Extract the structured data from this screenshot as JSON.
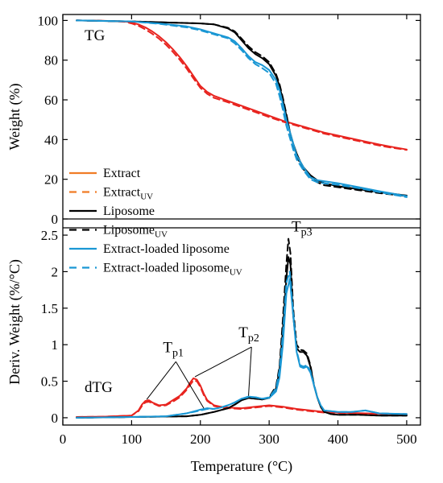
{
  "chart_data": {
    "type": "line",
    "xlabel": "Temperature (°C)",
    "xlim": [
      0,
      520
    ],
    "xticks": [
      0,
      100,
      200,
      300,
      400,
      500
    ],
    "colors": {
      "extract": "#e8241f",
      "extract_legend": "#f07c25",
      "liposome": "#000000",
      "loaded": "#1a97d4"
    },
    "panels": [
      {
        "id": "tg",
        "label": "TG",
        "ylabel": "Weight (%)",
        "ylim": [
          0,
          103
        ],
        "yticks": [
          0,
          20,
          40,
          60,
          80,
          100
        ],
        "series": [
          {
            "key": "extract",
            "dashed": false,
            "x": [
              20,
              60,
              90,
              100,
              110,
              120,
              130,
              140,
              150,
              160,
              170,
              180,
              190,
              200,
              210,
              220,
              240,
              260,
              280,
              300,
              320,
              340,
              360,
              380,
              400,
              420,
              440,
              460,
              480,
              500
            ],
            "y": [
              100,
              99.8,
              99.5,
              99,
              98,
              96.5,
              94.5,
              92,
              89,
              85.5,
              81.5,
              77,
              72,
              67,
              64,
              62,
              59.5,
              57,
              54.5,
              52,
              49.5,
              47.5,
              45.5,
              43.5,
              42,
              40.5,
              39,
              37.5,
              36.2,
              35
            ]
          },
          {
            "key": "extract",
            "dashed": true,
            "x": [
              20,
              60,
              90,
              100,
              110,
              120,
              130,
              140,
              150,
              160,
              170,
              180,
              190,
              200,
              210,
              220,
              240,
              260,
              280,
              300,
              320,
              340,
              360,
              380,
              400,
              420,
              440,
              460,
              480,
              500
            ],
            "y": [
              100,
              99.8,
              99.3,
              98.5,
              97.3,
              95.5,
              93.3,
              90.8,
              87.8,
              84.2,
              80.2,
              75.8,
              70.8,
              66,
              63,
              61,
              58.8,
              56.3,
              53.8,
              51.3,
              49,
              47,
              45,
              43,
              41.5,
              40,
              38.5,
              37,
              35.8,
              34.8
            ]
          },
          {
            "key": "liposome",
            "dashed": false,
            "x": [
              20,
              100,
              150,
              200,
              220,
              240,
              250,
              260,
              270,
              280,
              290,
              300,
              310,
              315,
              320,
              325,
              330,
              335,
              340,
              345,
              350,
              360,
              370,
              380,
              400,
              430,
              460,
              500
            ],
            "y": [
              100,
              99.5,
              99,
              98.5,
              98,
              96,
              94,
              90,
              86,
              83,
              81,
              78,
              72,
              67,
              60,
              52,
              44,
              38,
              33,
              29,
              26,
              22,
              19.5,
              18,
              16.5,
              15,
              13.5,
              11.8
            ]
          },
          {
            "key": "liposome",
            "dashed": true,
            "x": [
              20,
              100,
              150,
              200,
              220,
              240,
              250,
              260,
              270,
              280,
              290,
              300,
              310,
              315,
              320,
              325,
              330,
              335,
              340,
              345,
              350,
              360,
              370,
              380,
              400,
              430,
              460,
              500
            ],
            "y": [
              100,
              99.5,
              99,
              98.5,
              98,
              96.3,
              94.5,
              90.8,
              87,
              84,
              82,
              79,
              73,
              68,
              61,
              53,
              44,
              37.5,
              32,
              28,
              25,
              21,
              18.5,
              17,
              16,
              14.5,
              13,
              11.5
            ]
          },
          {
            "key": "loaded",
            "dashed": false,
            "x": [
              20,
              100,
              140,
              180,
              200,
              220,
              240,
              250,
              260,
              270,
              280,
              290,
              300,
              310,
              315,
              320,
              325,
              330,
              335,
              340,
              350,
              360,
              370,
              380,
              400,
              430,
              460,
              500
            ],
            "y": [
              100,
              99.5,
              98.5,
              97,
              95.5,
              93.5,
              91.5,
              89.5,
              86,
              82,
              79,
              77.5,
              75,
              70,
              65,
              58,
              50,
              44,
              38,
              32,
              26,
              21,
              19.5,
              19,
              18,
              16,
              14,
              11.5
            ]
          },
          {
            "key": "loaded",
            "dashed": true,
            "x": [
              20,
              100,
              140,
              180,
              200,
              220,
              240,
              250,
              260,
              270,
              280,
              290,
              300,
              310,
              315,
              320,
              325,
              330,
              335,
              340,
              350,
              360,
              370,
              380,
              400,
              430,
              460,
              500
            ],
            "y": [
              100,
              99.5,
              98.3,
              96.5,
              95,
              93,
              91,
              88.5,
              85,
              81,
              78,
              76,
              73.5,
              68,
              62,
              55,
              47,
              41,
              35,
              30,
              24.5,
              20,
              18.5,
              18,
              17.2,
              15.5,
              13.5,
              11
            ]
          }
        ]
      },
      {
        "id": "dtg",
        "label": "dTG",
        "ylabel": "Deriv. Weight (%/°C)",
        "ylim": [
          -0.1,
          2.6
        ],
        "yticks": [
          0,
          0.5,
          1,
          1.5,
          2,
          2.5
        ],
        "yticklabels": [
          "0",
          "0.5",
          "1",
          "1.5",
          "2",
          "2.5"
        ],
        "series": [
          {
            "key": "extract",
            "dashed": false,
            "x": [
              20,
              60,
              100,
              110,
              115,
              120,
              125,
              130,
              140,
              150,
              160,
              170,
              180,
              185,
              190,
              195,
              200,
              205,
              210,
              220,
              230,
              240,
              260,
              280,
              300,
              320,
              340,
              360,
              380,
              400,
              420,
              440,
              460,
              480,
              500
            ],
            "y": [
              0.01,
              0.015,
              0.03,
              0.1,
              0.18,
              0.23,
              0.24,
              0.21,
              0.17,
              0.18,
              0.24,
              0.3,
              0.4,
              0.48,
              0.54,
              0.52,
              0.44,
              0.33,
              0.24,
              0.17,
              0.15,
              0.14,
              0.13,
              0.15,
              0.17,
              0.15,
              0.12,
              0.1,
              0.08,
              0.07,
              0.065,
              0.06,
              0.055,
              0.05,
              0.05
            ]
          },
          {
            "key": "extract",
            "dashed": true,
            "x": [
              20,
              60,
              100,
              110,
              115,
              120,
              125,
              130,
              140,
              150,
              160,
              170,
              180,
              185,
              190,
              195,
              200,
              205,
              210,
              220,
              230,
              240,
              260,
              280,
              300,
              320,
              340,
              360,
              380,
              400,
              420,
              440,
              460,
              480,
              500
            ],
            "y": [
              0.01,
              0.015,
              0.03,
              0.09,
              0.16,
              0.21,
              0.22,
              0.2,
              0.16,
              0.17,
              0.22,
              0.28,
              0.38,
              0.45,
              0.51,
              0.5,
              0.42,
              0.31,
              0.23,
              0.16,
              0.14,
              0.13,
              0.12,
              0.14,
              0.16,
              0.14,
              0.11,
              0.09,
              0.07,
              0.065,
              0.06,
              0.055,
              0.05,
              0.045,
              0.045
            ]
          },
          {
            "key": "liposome",
            "dashed": false,
            "x": [
              20,
              100,
              180,
              200,
              220,
              240,
              250,
              260,
              270,
              280,
              290,
              300,
              310,
              315,
              320,
              325,
              328,
              331,
              335,
              340,
              345,
              350,
              355,
              360,
              365,
              370,
              375,
              380,
              390,
              400,
              430,
              460,
              500
            ],
            "y": [
              0,
              0.01,
              0.02,
              0.04,
              0.08,
              0.13,
              0.18,
              0.24,
              0.27,
              0.26,
              0.25,
              0.27,
              0.4,
              0.65,
              1.2,
              1.9,
              2.2,
              2.1,
              1.4,
              0.95,
              0.9,
              0.9,
              0.85,
              0.7,
              0.45,
              0.28,
              0.15,
              0.08,
              0.05,
              0.04,
              0.04,
              0.03,
              0.03
            ]
          },
          {
            "key": "liposome",
            "dashed": true,
            "x": [
              20,
              100,
              180,
              200,
              220,
              240,
              250,
              260,
              270,
              280,
              290,
              300,
              310,
              315,
              320,
              325,
              328,
              331,
              335,
              340,
              345,
              350,
              355,
              360,
              365,
              370,
              375,
              380,
              390,
              400,
              430,
              460,
              500
            ],
            "y": [
              0,
              0.01,
              0.02,
              0.04,
              0.08,
              0.13,
              0.18,
              0.24,
              0.27,
              0.26,
              0.25,
              0.28,
              0.43,
              0.7,
              1.35,
              2.1,
              2.45,
              2.25,
              1.5,
              1.0,
              0.93,
              0.92,
              0.88,
              0.72,
              0.46,
              0.28,
              0.15,
              0.08,
              0.05,
              0.04,
              0.04,
              0.03,
              0.03
            ]
          },
          {
            "key": "loaded",
            "dashed": false,
            "x": [
              20,
              100,
              150,
              180,
              200,
              210,
              220,
              230,
              240,
              250,
              260,
              270,
              280,
              290,
              300,
              310,
              315,
              320,
              325,
              330,
              335,
              340,
              345,
              350,
              355,
              360,
              365,
              370,
              375,
              380,
              400,
              420,
              440,
              460,
              500
            ],
            "y": [
              0,
              0.01,
              0.02,
              0.06,
              0.11,
              0.13,
              0.12,
              0.14,
              0.17,
              0.21,
              0.26,
              0.29,
              0.28,
              0.26,
              0.27,
              0.36,
              0.55,
              1.0,
              1.7,
              1.9,
              1.4,
              0.9,
              0.7,
              0.68,
              0.7,
              0.62,
              0.45,
              0.28,
              0.17,
              0.1,
              0.08,
              0.08,
              0.1,
              0.06,
              0.05
            ]
          },
          {
            "key": "loaded",
            "dashed": true,
            "x": [
              20,
              100,
              150,
              180,
              200,
              210,
              220,
              230,
              240,
              250,
              260,
              270,
              280,
              290,
              300,
              310,
              315,
              320,
              325,
              330,
              335,
              340,
              345,
              350,
              355,
              360,
              365,
              370,
              375,
              380,
              400,
              420,
              440,
              460,
              500
            ],
            "y": [
              0,
              0.01,
              0.02,
              0.06,
              0.1,
              0.12,
              0.12,
              0.14,
              0.17,
              0.21,
              0.26,
              0.28,
              0.28,
              0.26,
              0.28,
              0.4,
              0.65,
              1.15,
              1.85,
              2.0,
              1.45,
              0.92,
              0.72,
              0.7,
              0.72,
              0.64,
              0.46,
              0.28,
              0.17,
              0.1,
              0.08,
              0.08,
              0.1,
              0.06,
              0.05
            ]
          }
        ]
      }
    ],
    "legend": {
      "position": "top-left of lower panel",
      "entries": [
        {
          "key": "extract_legend",
          "dashed": false,
          "base": "Extract",
          "sub": ""
        },
        {
          "key": "extract_legend",
          "dashed": true,
          "base": "Extract",
          "sub": "UV"
        },
        {
          "key": "liposome",
          "dashed": false,
          "base": "Liposome",
          "sub": ""
        },
        {
          "key": "liposome",
          "dashed": true,
          "base": "Liposome",
          "sub": "UV"
        },
        {
          "key": "loaded",
          "dashed": false,
          "base": "Extract-loaded liposome",
          "sub": ""
        },
        {
          "key": "loaded",
          "dashed": true,
          "base": "Extract-loaded liposome",
          "sub": "UV"
        }
      ]
    },
    "annotations": [
      {
        "base": "T",
        "sub": "p1",
        "x": 155,
        "y": 0.9,
        "targets": [
          [
            122,
            0.25
          ],
          [
            205,
            0.13
          ]
        ]
      },
      {
        "base": "T",
        "sub": "p2",
        "x": 265,
        "y": 1.1,
        "targets": [
          [
            192,
            0.56
          ],
          [
            270,
            0.3
          ]
        ]
      },
      {
        "base": "T",
        "sub": "p3",
        "x": 342,
        "y": 2.55,
        "targets": []
      }
    ]
  }
}
